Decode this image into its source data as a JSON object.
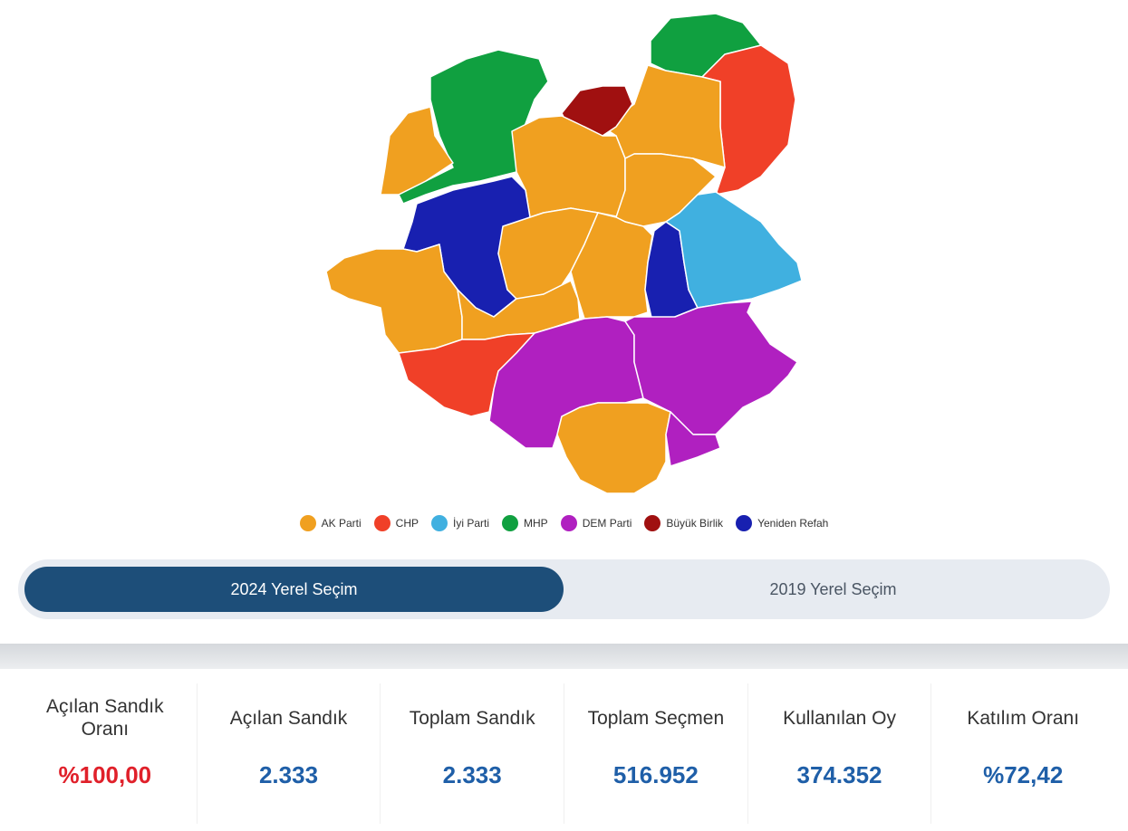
{
  "parties": {
    "ak": {
      "label": "AK Parti",
      "color": "#f0a020"
    },
    "chp": {
      "label": "CHP",
      "color": "#f04028"
    },
    "iyi": {
      "label": "İyi Parti",
      "color": "#40b0e0"
    },
    "mhp": {
      "label": "MHP",
      "color": "#10a040"
    },
    "dem": {
      "label": "DEM Parti",
      "color": "#b020c0"
    },
    "bbp": {
      "label": "Büyük Birlik",
      "color": "#a01010"
    },
    "yr": {
      "label": "Yeniden Refah",
      "color": "#1820b0"
    }
  },
  "legend": [
    "ak",
    "chp",
    "iyi",
    "mhp",
    "dem",
    "bbp",
    "yr"
  ],
  "district_winners": [
    "mhp",
    "chp",
    "ak",
    "bbp",
    "mhp",
    "ak",
    "ak",
    "ak",
    "yr",
    "ak",
    "ak",
    "ak",
    "ak",
    "yr",
    "iyi",
    "chp",
    "dem",
    "dem",
    "ak",
    "dem"
  ],
  "tabs": [
    {
      "label": "2024 Yerel Seçim",
      "active": true
    },
    {
      "label": "2019 Yerel Seçim",
      "active": false
    }
  ],
  "stats": [
    {
      "label": "Açılan Sandık Oranı",
      "value": "%100,00",
      "highlight": "#e0202a"
    },
    {
      "label": "Açılan Sandık",
      "value": "2.333"
    },
    {
      "label": "Toplam Sandık",
      "value": "2.333"
    },
    {
      "label": "Toplam Seçmen",
      "value": "516.952"
    },
    {
      "label": "Kullanılan Oy",
      "value": "374.352"
    },
    {
      "label": "Katılım Oranı",
      "value": "%72,42"
    }
  ]
}
